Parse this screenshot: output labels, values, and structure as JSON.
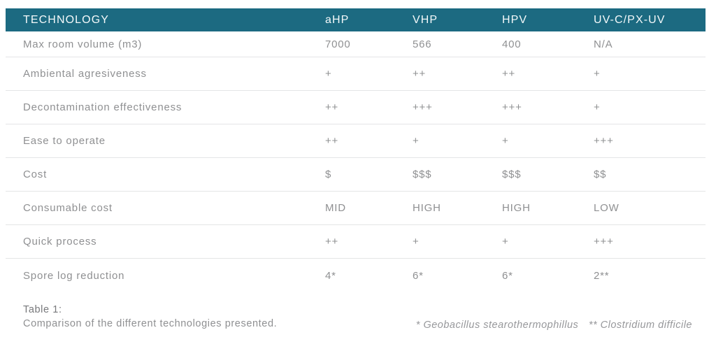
{
  "table": {
    "header": {
      "columns": [
        "TECHNOLOGY",
        "aHP",
        "VHP",
        "HPV",
        "UV-C/PX-UV"
      ]
    },
    "rows": [
      {
        "label": "Max room volume (m3)",
        "values": [
          "7000",
          "566",
          "400",
          "N/A"
        ]
      },
      {
        "label": "Ambiental agresiveness",
        "values": [
          "+",
          "++",
          "++",
          "+"
        ]
      },
      {
        "label": "Decontamination effectiveness",
        "values": [
          "++",
          "+++",
          "+++",
          "+"
        ]
      },
      {
        "label": "Ease to operate",
        "values": [
          "++",
          "+",
          "+",
          "+++"
        ]
      },
      {
        "label": "Cost",
        "values": [
          "$",
          "$$$",
          "$$$",
          "$$"
        ]
      },
      {
        "label": "Consumable cost",
        "values": [
          "MID",
          "HIGH",
          "HIGH",
          "LOW"
        ]
      },
      {
        "label": "Quick process",
        "values": [
          "++",
          "+",
          "+",
          "+++"
        ]
      },
      {
        "label": "Spore log reduction",
        "values": [
          "4*",
          "6*",
          "6*",
          "2**"
        ]
      }
    ]
  },
  "caption": {
    "title": "Table 1:",
    "text": "Comparison of the different technologies presented."
  },
  "footnotes": {
    "first": "* Geobacillus stearothermophillus",
    "second": "** Clostridium difficile"
  },
  "colors": {
    "header_bg": "#1c6a81",
    "header_text": "#f4f9fa",
    "body_text": "#8f9092",
    "divider": "#e4e5e6"
  }
}
